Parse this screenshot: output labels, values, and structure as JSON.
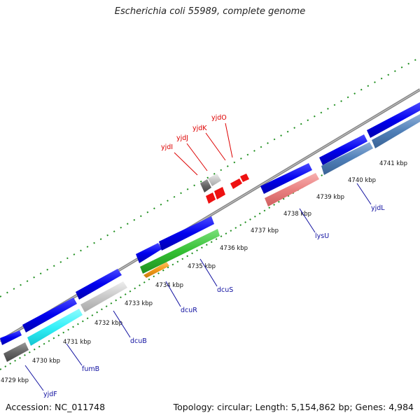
{
  "title": "Escherichia coli 55989, complete genome",
  "footer": {
    "accession": "Accession: NC_011748",
    "summary": "Topology: circular; Length: 5,154,862 bp; Genes: 4,984"
  },
  "colors": {
    "backbone": "#888888",
    "tick": "#1f8f1f",
    "label_blue": "#1010a0",
    "label_red": "#dd0000"
  },
  "ticks": [
    {
      "label": "4729 kbp"
    },
    {
      "label": "4730 kbp"
    },
    {
      "label": "4731 kbp"
    },
    {
      "label": "4732 kbp"
    },
    {
      "label": "4733 kbp"
    },
    {
      "label": "4734 kbp"
    },
    {
      "label": "4735 kbp"
    },
    {
      "label": "4736 kbp"
    },
    {
      "label": "4737 kbp"
    },
    {
      "label": "4738 kbp"
    },
    {
      "label": "4739 kbp"
    },
    {
      "label": "4740 kbp"
    },
    {
      "label": "4741 kbp"
    }
  ],
  "gene_labels_blue": [
    {
      "name": "yjdF"
    },
    {
      "name": "fumB"
    },
    {
      "name": "dcuB"
    },
    {
      "name": "dcuR"
    },
    {
      "name": "dcuS"
    },
    {
      "name": "lysU"
    },
    {
      "name": "yjdL"
    }
  ],
  "gene_labels_red": [
    {
      "name": "yjdI"
    },
    {
      "name": "yjdJ"
    },
    {
      "name": "yjdK"
    },
    {
      "name": "yjdO"
    }
  ]
}
